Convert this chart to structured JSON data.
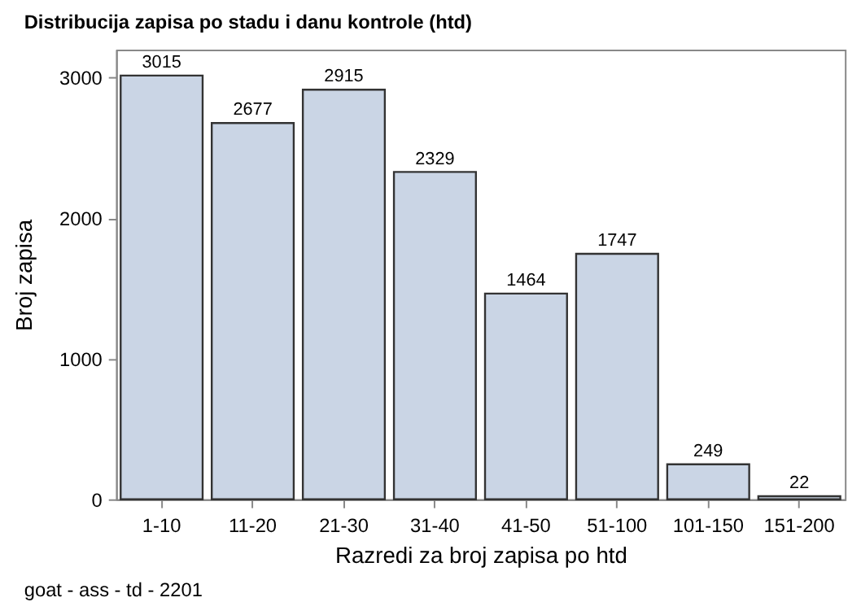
{
  "chart_data": {
    "type": "bar",
    "title": "Distribucija zapisa po stadu i danu kontrole (htd)",
    "xlabel": "Razredi za broj zapisa po htd",
    "ylabel": "Broj zapisa",
    "categories": [
      "1-10",
      "11-20",
      "21-30",
      "31-40",
      "41-50",
      "51-100",
      "101-150",
      "151-200"
    ],
    "values": [
      3015,
      2677,
      2915,
      2329,
      1464,
      1747,
      249,
      22
    ],
    "color": "#cad5e5",
    "data_labels": true,
    "ylim": [
      0,
      3200
    ],
    "yticks": [
      0,
      1000,
      2000,
      3000
    ],
    "grid": false,
    "annotations": [
      "goat - ass - td - 2201"
    ]
  }
}
